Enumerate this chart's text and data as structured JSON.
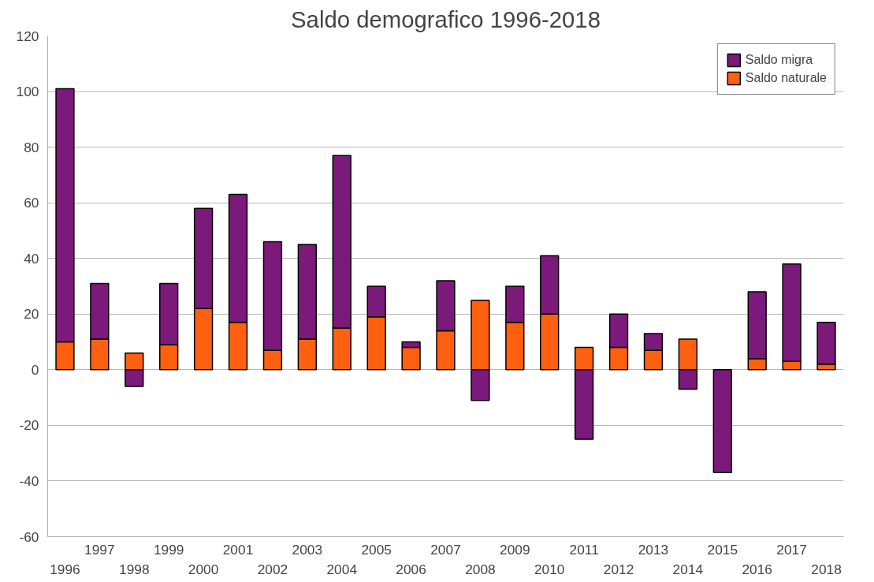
{
  "chart_data": {
    "type": "bar",
    "title": "Saldo demografico 1996-2018",
    "stacked": true,
    "categories": [
      "1996",
      "1997",
      "1998",
      "1999",
      "2000",
      "2001",
      "2002",
      "2003",
      "2004",
      "2005",
      "2006",
      "2007",
      "2008",
      "2009",
      "2010",
      "2011",
      "2012",
      "2013",
      "2014",
      "2015",
      "2016",
      "2017",
      "2018"
    ],
    "series": [
      {
        "name": "Saldo naturale",
        "color": "#ff6010",
        "values": [
          10,
          11,
          6,
          9,
          22,
          17,
          7,
          11,
          15,
          19,
          8,
          14,
          25,
          17,
          20,
          8,
          8,
          7,
          11,
          null,
          4,
          3,
          2
        ]
      },
      {
        "name": "Saldo migra",
        "color": "#7b1a7b",
        "values": [
          91,
          20,
          -6,
          22,
          36,
          46,
          39,
          34,
          62,
          11,
          2,
          18,
          -11,
          13,
          21,
          -25,
          12,
          6,
          -7,
          -37,
          24,
          35,
          15
        ]
      }
    ],
    "ylim": [
      -60,
      120
    ],
    "yticks": [
      -60,
      -40,
      -20,
      0,
      20,
      40,
      60,
      80,
      100,
      120
    ],
    "grid": "y",
    "legend": "top right"
  }
}
